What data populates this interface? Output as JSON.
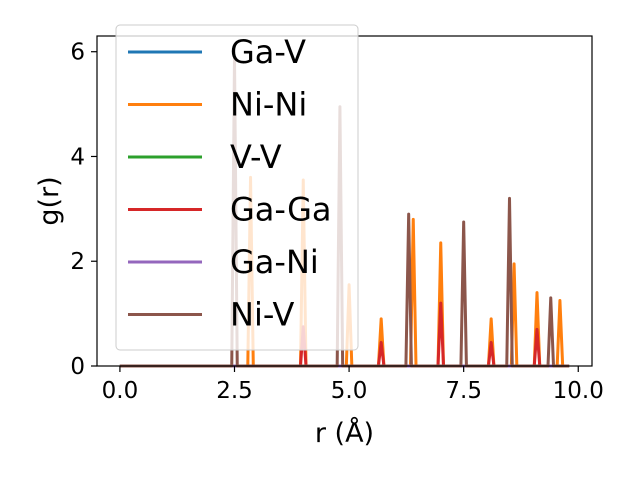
{
  "chart_data": {
    "type": "line",
    "xlabel": "r (Å)",
    "ylabel": "g(r)",
    "xlim": [
      -0.5,
      10.3
    ],
    "ylim": [
      0,
      6.3
    ],
    "xticks": [
      {
        "value": 0.0,
        "label": "0.0"
      },
      {
        "value": 2.5,
        "label": "2.5"
      },
      {
        "value": 5.0,
        "label": "5.0"
      },
      {
        "value": 7.5,
        "label": "7.5"
      },
      {
        "value": 10.0,
        "label": "10.0"
      }
    ],
    "yticks": [
      {
        "value": 0,
        "label": "0"
      },
      {
        "value": 2,
        "label": "2"
      },
      {
        "value": 4,
        "label": "4"
      },
      {
        "value": 6,
        "label": "6"
      }
    ],
    "grid": false,
    "legend_position": "upper-left",
    "x_range": [
      0.0,
      9.8
    ],
    "series": [
      {
        "name": "Ga-V",
        "color": "#1f77b4",
        "peaks": []
      },
      {
        "name": "Ni-Ni",
        "color": "#ff7f0e",
        "peaks": [
          {
            "x": 2.85,
            "y": 3.6
          },
          {
            "x": 4.0,
            "y": 3.55
          },
          {
            "x": 5.0,
            "y": 1.55
          },
          {
            "x": 5.7,
            "y": 0.9
          },
          {
            "x": 6.4,
            "y": 2.8
          },
          {
            "x": 7.0,
            "y": 2.35
          },
          {
            "x": 8.1,
            "y": 0.9
          },
          {
            "x": 8.6,
            "y": 1.95
          },
          {
            "x": 9.1,
            "y": 1.4
          },
          {
            "x": 9.6,
            "y": 1.25
          }
        ]
      },
      {
        "name": "V-V",
        "color": "#2ca02c",
        "peaks": []
      },
      {
        "name": "Ga-Ga",
        "color": "#d62728",
        "peaks": [
          {
            "x": 4.0,
            "y": 0.75
          },
          {
            "x": 5.7,
            "y": 0.45
          },
          {
            "x": 7.0,
            "y": 1.2
          },
          {
            "x": 8.1,
            "y": 0.45
          },
          {
            "x": 9.1,
            "y": 0.7
          }
        ]
      },
      {
        "name": "Ga-Ni",
        "color": "#9467bd",
        "peaks": []
      },
      {
        "name": "Ni-V",
        "color": "#8c564b",
        "peaks": [
          {
            "x": 2.5,
            "y": 5.9
          },
          {
            "x": 4.8,
            "y": 4.95
          },
          {
            "x": 6.3,
            "y": 2.9
          },
          {
            "x": 7.5,
            "y": 2.75
          },
          {
            "x": 8.5,
            "y": 3.2
          },
          {
            "x": 9.4,
            "y": 1.3
          }
        ]
      }
    ]
  }
}
